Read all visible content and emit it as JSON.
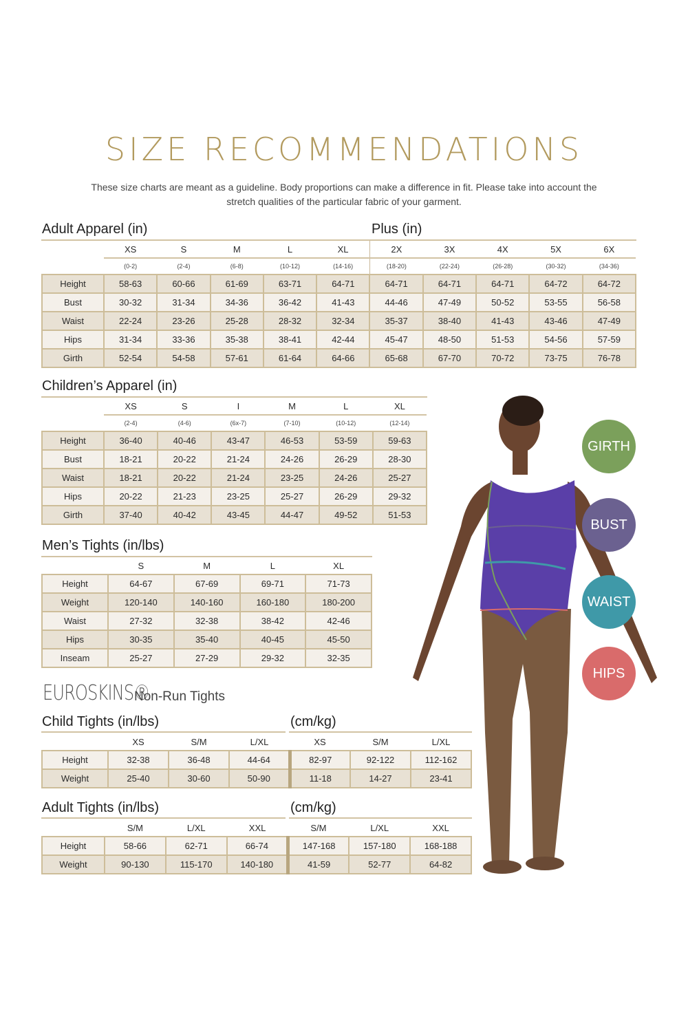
{
  "title": "SIZE RECOMMENDATIONS",
  "intro": "These size charts are meant as a guideline. Body proportions can make a difference in fit. Please take into account the stretch qualities of the particular fabric of your garment.",
  "adult": {
    "title": "Adult Apparel (in)",
    "plus_title": "Plus (in)",
    "cols": [
      "XS",
      "S",
      "M",
      "L",
      "XL",
      "2X",
      "3X",
      "4X",
      "5X",
      "6X"
    ],
    "sub": [
      "(0-2)",
      "(2-4)",
      "(6-8)",
      "(10-12)",
      "(14-16)",
      "(18-20)",
      "(22-24)",
      "(26-28)",
      "(30-32)",
      "(34-36)"
    ],
    "rows": [
      {
        "label": "Height",
        "values": [
          "58-63",
          "60-66",
          "61-69",
          "63-71",
          "64-71",
          "64-71",
          "64-71",
          "64-71",
          "64-72",
          "64-72"
        ]
      },
      {
        "label": "Bust",
        "values": [
          "30-32",
          "31-34",
          "34-36",
          "36-42",
          "41-43",
          "44-46",
          "47-49",
          "50-52",
          "53-55",
          "56-58"
        ]
      },
      {
        "label": "Waist",
        "values": [
          "22-24",
          "23-26",
          "25-28",
          "28-32",
          "32-34",
          "35-37",
          "38-40",
          "41-43",
          "43-46",
          "47-49"
        ]
      },
      {
        "label": "Hips",
        "values": [
          "31-34",
          "33-36",
          "35-38",
          "38-41",
          "42-44",
          "45-47",
          "48-50",
          "51-53",
          "54-56",
          "57-59"
        ]
      },
      {
        "label": "Girth",
        "values": [
          "52-54",
          "54-58",
          "57-61",
          "61-64",
          "64-66",
          "65-68",
          "67-70",
          "70-72",
          "73-75",
          "76-78"
        ]
      }
    ]
  },
  "children": {
    "title": "Children’s Apparel (in)",
    "cols": [
      "XS",
      "S",
      "I",
      "M",
      "L",
      "XL"
    ],
    "sub": [
      "(2-4)",
      "(4-6)",
      "(6x-7)",
      "(7-10)",
      "(10-12)",
      "(12-14)"
    ],
    "rows": [
      {
        "label": "Height",
        "values": [
          "36-40",
          "40-46",
          "43-47",
          "46-53",
          "53-59",
          "59-63"
        ]
      },
      {
        "label": "Bust",
        "values": [
          "18-21",
          "20-22",
          "21-24",
          "24-26",
          "26-29",
          "28-30"
        ]
      },
      {
        "label": "Waist",
        "values": [
          "18-21",
          "20-22",
          "21-24",
          "23-25",
          "24-26",
          "25-27"
        ]
      },
      {
        "label": "Hips",
        "values": [
          "20-22",
          "21-23",
          "23-25",
          "25-27",
          "26-29",
          "29-32"
        ]
      },
      {
        "label": "Girth",
        "values": [
          "37-40",
          "40-42",
          "43-45",
          "44-47",
          "49-52",
          "51-53"
        ]
      }
    ]
  },
  "mens": {
    "title": "Men’s Tights (in/lbs)",
    "cols": [
      "S",
      "M",
      "L",
      "XL"
    ],
    "rows": [
      {
        "label": "Height",
        "values": [
          "64-67",
          "67-69",
          "69-71",
          "71-73"
        ]
      },
      {
        "label": "Weight",
        "values": [
          "120-140",
          "140-160",
          "160-180",
          "180-200"
        ]
      },
      {
        "label": "Waist",
        "values": [
          "27-32",
          "32-38",
          "38-42",
          "42-46"
        ]
      },
      {
        "label": "Hips",
        "values": [
          "30-35",
          "35-40",
          "40-45",
          "45-50"
        ]
      },
      {
        "label": "Inseam",
        "values": [
          "25-27",
          "27-29",
          "29-32",
          "32-35"
        ]
      }
    ]
  },
  "brand": {
    "name": "EUROSKINS®",
    "subtitle": "Non-Run Tights"
  },
  "child_tights": {
    "title": "Child Tights (in/lbs)",
    "metric_title": "(cm/kg)",
    "cols": [
      "XS",
      "S/M",
      "L/XL",
      "XS",
      "S/M",
      "L/XL"
    ],
    "rows": [
      {
        "label": "Height",
        "values": [
          "32-38",
          "36-48",
          "44-64",
          "82-97",
          "92-122",
          "112-162"
        ]
      },
      {
        "label": "Weight",
        "values": [
          "25-40",
          "30-60",
          "50-90",
          "11-18",
          "14-27",
          "23-41"
        ]
      }
    ]
  },
  "adult_tights": {
    "title": "Adult Tights (in/lbs)",
    "metric_title": "(cm/kg)",
    "cols": [
      "S/M",
      "L/XL",
      "XXL",
      "S/M",
      "L/XL",
      "XXL"
    ],
    "rows": [
      {
        "label": "Height",
        "values": [
          "58-66",
          "62-71",
          "66-74",
          "147-168",
          "157-180",
          "168-188"
        ]
      },
      {
        "label": "Weight",
        "values": [
          "90-130",
          "115-170",
          "140-180",
          "41-59",
          "52-77",
          "64-82"
        ]
      }
    ]
  },
  "badges": [
    {
      "label": "GIRTH",
      "color": "#7ba05b"
    },
    {
      "label": "BUST",
      "color": "#6b6190"
    },
    {
      "label": "WAIST",
      "color": "#3f99a8"
    },
    {
      "label": "HIPS",
      "color": "#d96b6b"
    }
  ],
  "colors": {
    "title": "#b29a5e",
    "leotard": "#5a3fa8",
    "tights": "#7a5a40"
  }
}
